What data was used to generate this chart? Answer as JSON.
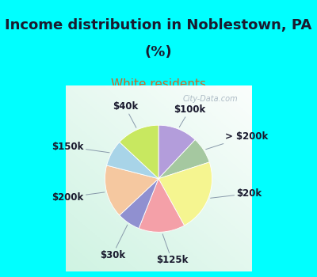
{
  "title_line1": "Income distribution in Noblestown, PA",
  "title_line2": "(%)",
  "subtitle": "White residents",
  "title_fontsize": 13,
  "subtitle_fontsize": 11,
  "cyan_color": "#00FFFF",
  "labels": [
    "$100k",
    "> $200k",
    "$20k",
    "$125k",
    "$30k",
    "$200k",
    "$150k",
    "$40k"
  ],
  "sizes": [
    12,
    8,
    22,
    14,
    7,
    16,
    8,
    13
  ],
  "colors": [
    "#b39ddb",
    "#a5c8a0",
    "#f5f590",
    "#f4a0a8",
    "#9090d0",
    "#f5c8a0",
    "#a8d4e8",
    "#c8e860"
  ],
  "label_fontsize": 8.5,
  "watermark": "City-Data.com"
}
